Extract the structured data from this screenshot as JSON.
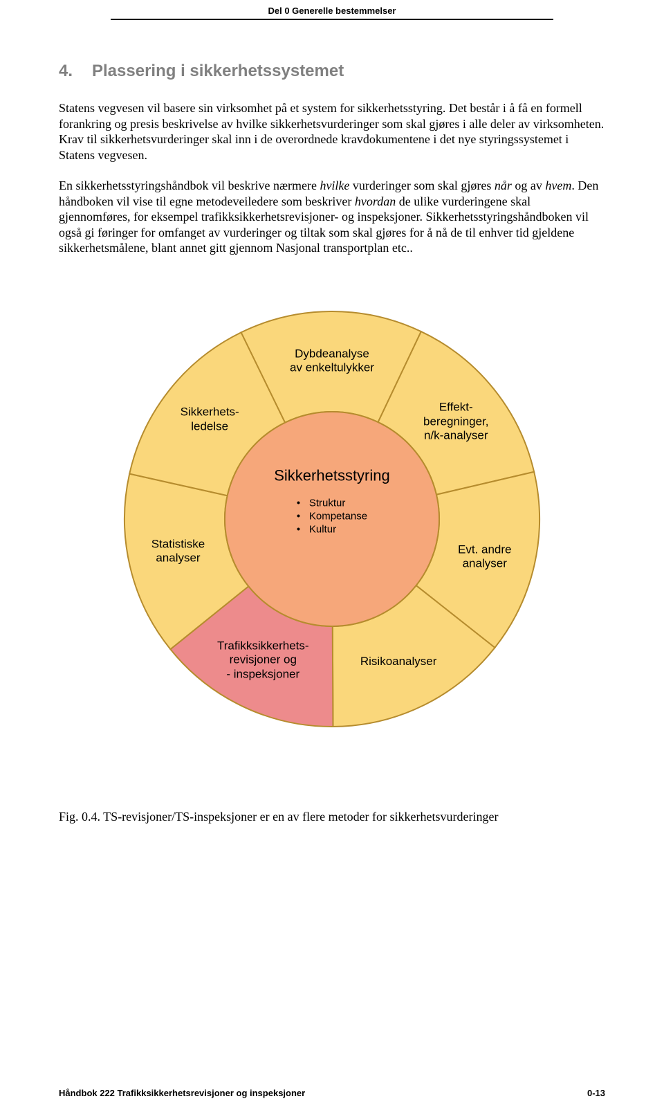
{
  "header": {
    "text": "Del 0 Generelle bestemmelser"
  },
  "section": {
    "number": "4.",
    "title": "Plassering i sikkerhetssystemet"
  },
  "paragraphs": {
    "p1_a": "Statens vegvesen vil basere sin virksomhet på et system for sikkerhetsstyring. Det består i å få en formell forankring og presis beskrivelse av hvilke sikkerhetsvurderinger som skal gjøres i alle deler av virksomheten. Krav til sikkerhetsvurderinger skal inn i de overordnede kravdokumentene i det nye styringssystemet i Statens vegvesen.",
    "p2_a": "En sikkerhetsstyringshåndbok vil beskrive nærmere ",
    "p2_b_i": "hvilke",
    "p2_c": " vurderinger som skal gjøres ",
    "p2_d_i": "når",
    "p2_e": " og av ",
    "p2_f_i": "hvem",
    "p2_g": ". Den håndboken vil vise til egne metodeveiledere som beskriver ",
    "p2_h_i": "hvordan",
    "p2_i": " de ulike vurderingene skal gjennomføres, for eksempel trafikksikkerhetsrevisjoner- og inspeksjoner. Sikkerhetsstyringshåndboken vil også gi føringer for omfanget av vurderinger og tiltak som skal gjøres for å nå de til enhver tid gjeldene sikkerhetsmålene, blant annet gitt gjennom Nasjonal transportplan etc.."
  },
  "diagram": {
    "type": "radial-segments",
    "outer_stroke": "#b68c2e",
    "background": "#ffffff",
    "segments": [
      {
        "label": "Dybdeanalyse\nav enkeltulykker",
        "fill": "#fad77b",
        "highlight": false,
        "angle_center": -90
      },
      {
        "label": "Effekt-\nberegninger,\nn/k-analyser",
        "fill": "#fad77b",
        "highlight": false,
        "angle_center": -38
      },
      {
        "label": "Evt. andre\nanalyser",
        "fill": "#fad77b",
        "highlight": false,
        "angle_center": 14
      },
      {
        "label": "Risikoanalyser",
        "fill": "#fad77b",
        "highlight": false,
        "angle_center": 65
      },
      {
        "label": "Trafikksikkerhets-\nrevisjoner og\n- inspeksjoner",
        "fill": "#ed8b8c",
        "highlight": true,
        "angle_center": 116
      },
      {
        "label": "Statistiske\nanalyser",
        "fill": "#fad77b",
        "highlight": false,
        "angle_center": 168
      },
      {
        "label": "Sikkerhets-\nledelse",
        "fill": "#fad77b",
        "highlight": false,
        "angle_center": 219
      }
    ],
    "center": {
      "fill": "#f6a77a",
      "title": "Sikkerhetsstyring",
      "bullets": [
        "Struktur",
        "Kompetanse",
        "Kultur"
      ]
    },
    "radii": {
      "outer": 300,
      "inner": 155
    },
    "segment_start_deg": -116,
    "segment_sweep_deg": 51.43
  },
  "caption": {
    "text": "Fig. 0.4.  TS-revisjoner/TS-inspeksjoner er en av flere metoder for sikkerhetsvurderinger"
  },
  "footer": {
    "left": "Håndbok 222 Trafikksikkerhetsrevisjoner og inspeksjoner",
    "right": "0-13"
  }
}
